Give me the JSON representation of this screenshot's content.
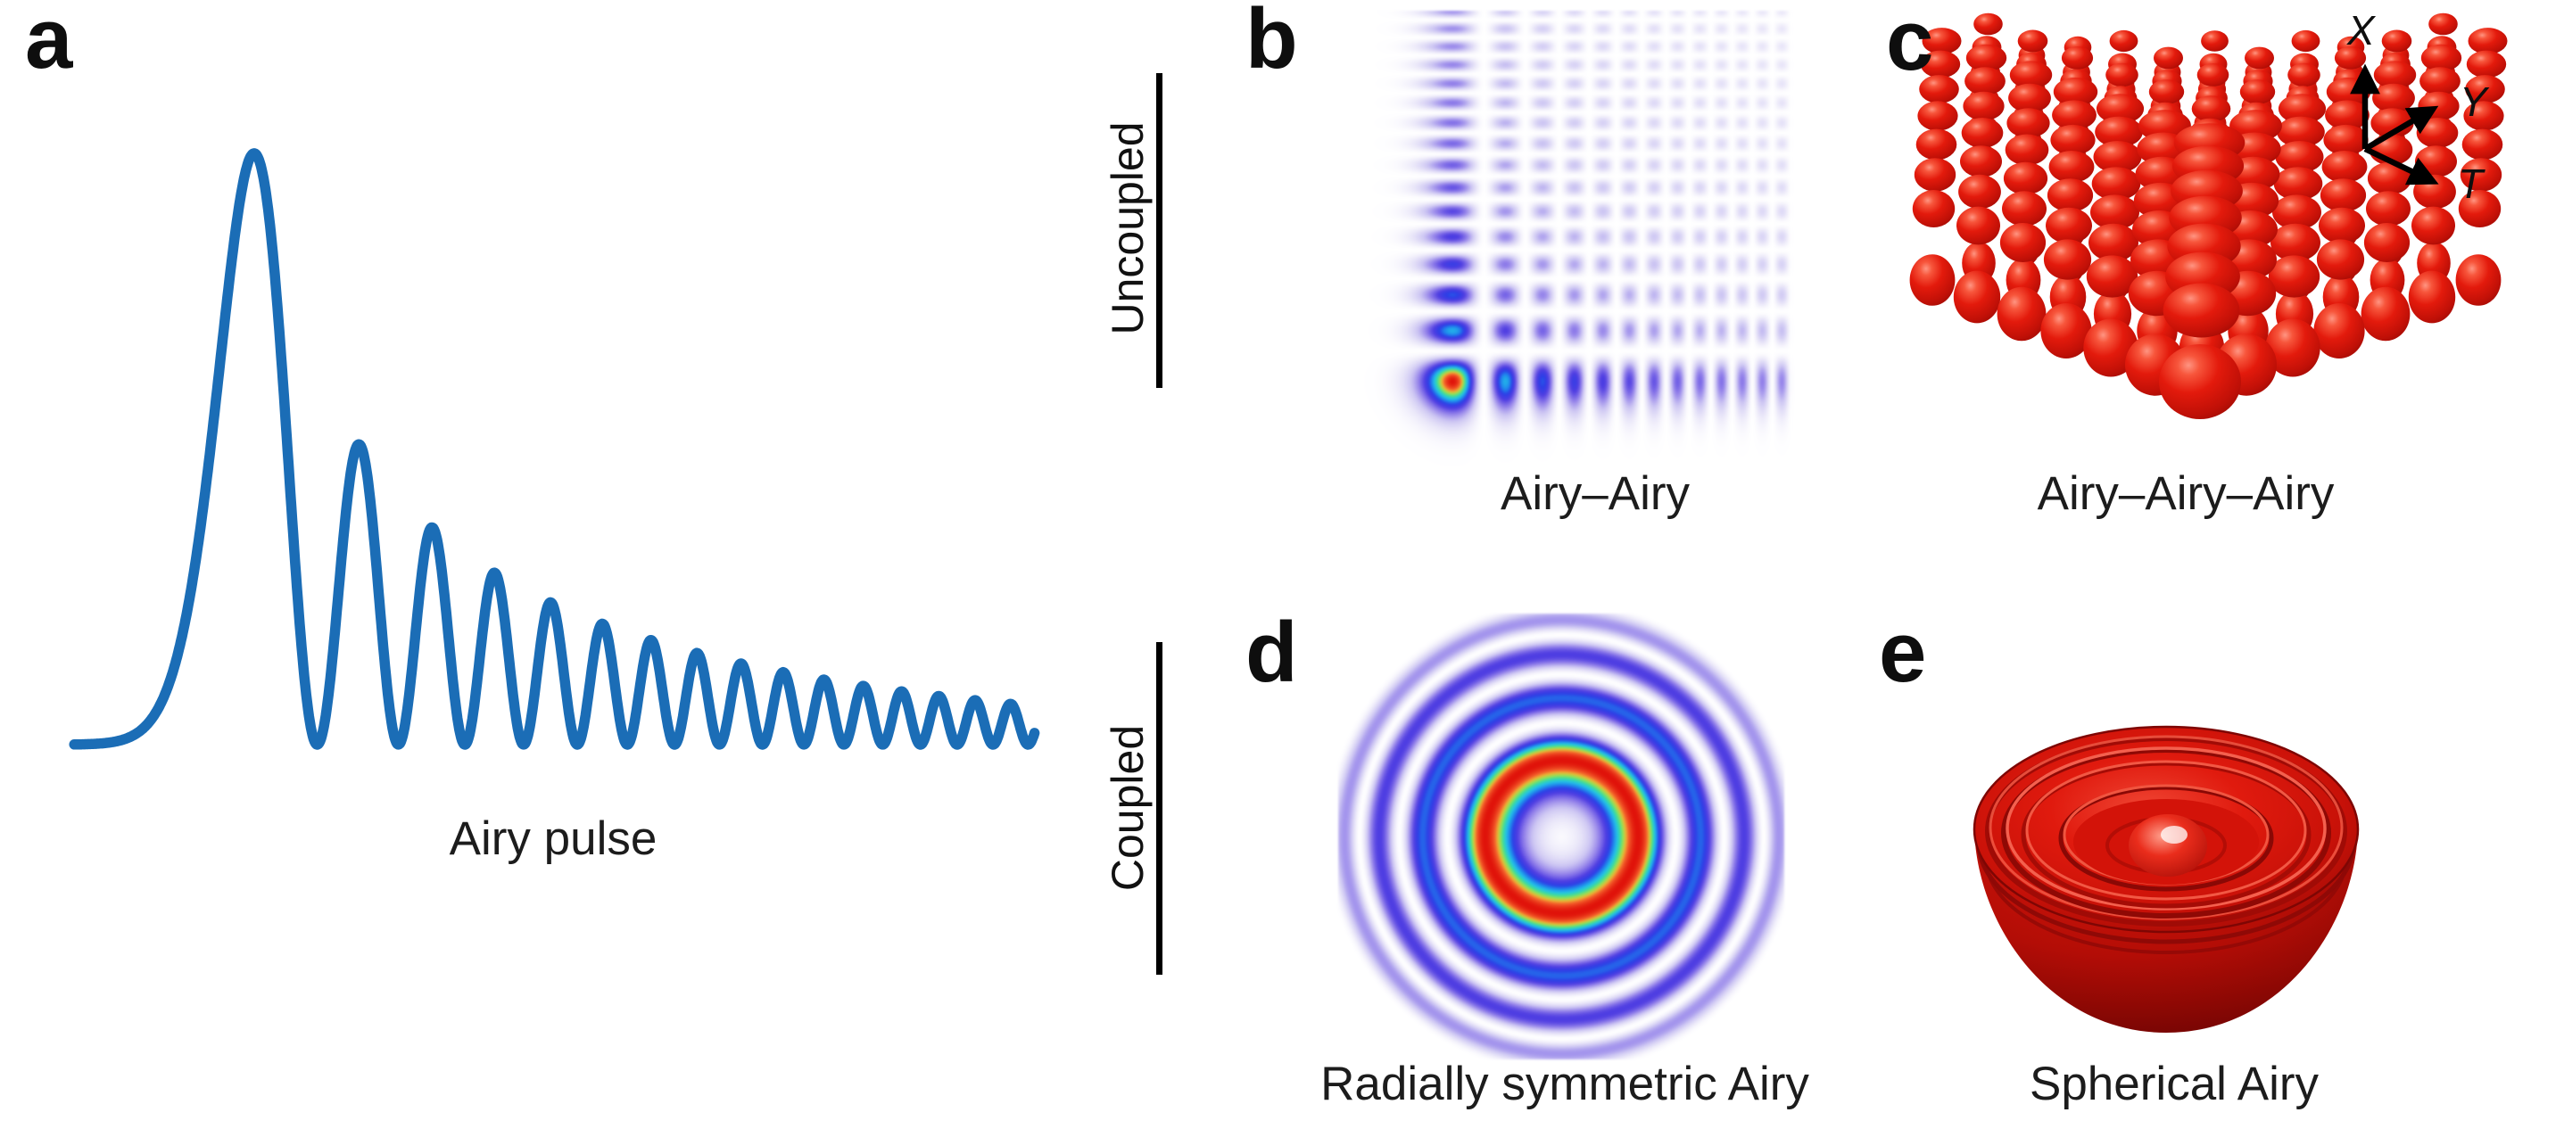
{
  "panels": {
    "a": {
      "letter": "a",
      "caption": "Airy pulse"
    },
    "b": {
      "letter": "b",
      "caption": "Airy–Airy",
      "group": "Uncoupled"
    },
    "c": {
      "letter": "c",
      "caption": "Airy–Airy–Airy",
      "group": "Uncoupled"
    },
    "d": {
      "letter": "d",
      "caption": "Radially symmetric Airy",
      "group": "Coupled"
    },
    "e": {
      "letter": "e",
      "caption": "Spherical Airy",
      "group": "Coupled"
    }
  },
  "group_labels": {
    "uncoupled": "Uncoupled",
    "coupled": "Coupled"
  },
  "axis_triad": {
    "up": "X",
    "upper_right": "Y",
    "lower_right": "T"
  },
  "colors": {
    "background": "#ffffff",
    "curve_blue": "#1b6db6",
    "text": "#1c1c1c",
    "red_blob_main": "#e01a0e",
    "red_blob_highlight": "#ff9582",
    "red_blob_dark": "#940a05",
    "heatmap_stops": [
      [
        0.0,
        "#ffffff"
      ],
      [
        0.07,
        "#eae7f9"
      ],
      [
        0.16,
        "#cdc6f3"
      ],
      [
        0.28,
        "#9280ea"
      ],
      [
        0.4,
        "#503ee2"
      ],
      [
        0.5,
        "#2d3ee6"
      ],
      [
        0.58,
        "#2086ec"
      ],
      [
        0.66,
        "#24c2e8"
      ],
      [
        0.73,
        "#3adba2"
      ],
      [
        0.8,
        "#96e254"
      ],
      [
        0.86,
        "#eeb434"
      ],
      [
        0.91,
        "#f4622c"
      ],
      [
        1.0,
        "#e0120a"
      ]
    ]
  },
  "chart_data": [
    {
      "type": "line",
      "title": "Airy pulse",
      "model": "I(t) = |Ai(-t)|^2 · exp(-0.166·t), normalized to main peak",
      "t_range": [
        -2.9,
        17.8
      ],
      "peaks_t": [
        1.02,
        3.25,
        4.82,
        6.16,
        7.37,
        8.49,
        9.54,
        10.53,
        11.47,
        12.38,
        13.26,
        14.11,
        14.93,
        15.72
      ],
      "peaks_intensity": [
        1.0,
        0.42,
        0.27,
        0.19,
        0.14,
        0.11,
        0.087,
        0.07,
        0.057,
        0.048,
        0.04,
        0.033,
        0.028,
        0.024
      ],
      "line_color": "#1b6db6",
      "axes_shown": false,
      "grid": false
    },
    {
      "type": "heatmap",
      "title": "Airy–Airy",
      "model": "I(x,y) = |Ai(-x)·Ai(-y)|^2 apodized (a=0.02); main lobe at lower-left corner, lobe trains extend up and right",
      "colormap": "white → lavender → violet → blue → cyan → green → red",
      "orientation": "uncoupled 2D Airy lattice"
    },
    {
      "type": "isosurface-3d",
      "title": "Airy–Airy–Airy",
      "model": "separable 3D Airy intensity isosurface: red lobes on corner lattice, largest lobe front-bottom, decaying along X (up), Y and T",
      "axes": [
        "X",
        "Y",
        "T"
      ]
    },
    {
      "type": "heatmap",
      "title": "Radially symmetric Airy",
      "model": "I(r) = |Ai((r-r0)/w)|^2 apodized (a=0.083); white core, bright red main ring, decaying blue/violet outer rings",
      "ring_radii_rel": [
        1.0,
        1.79,
        2.34,
        2.83
      ],
      "ring_intensity": [
        1.0,
        0.42,
        0.27,
        0.19
      ]
    },
    {
      "type": "isosurface-3d",
      "title": "Spherical Airy",
      "model": "red hemispherical bowl isosurface with concentric surface ripples and central bump"
    }
  ]
}
